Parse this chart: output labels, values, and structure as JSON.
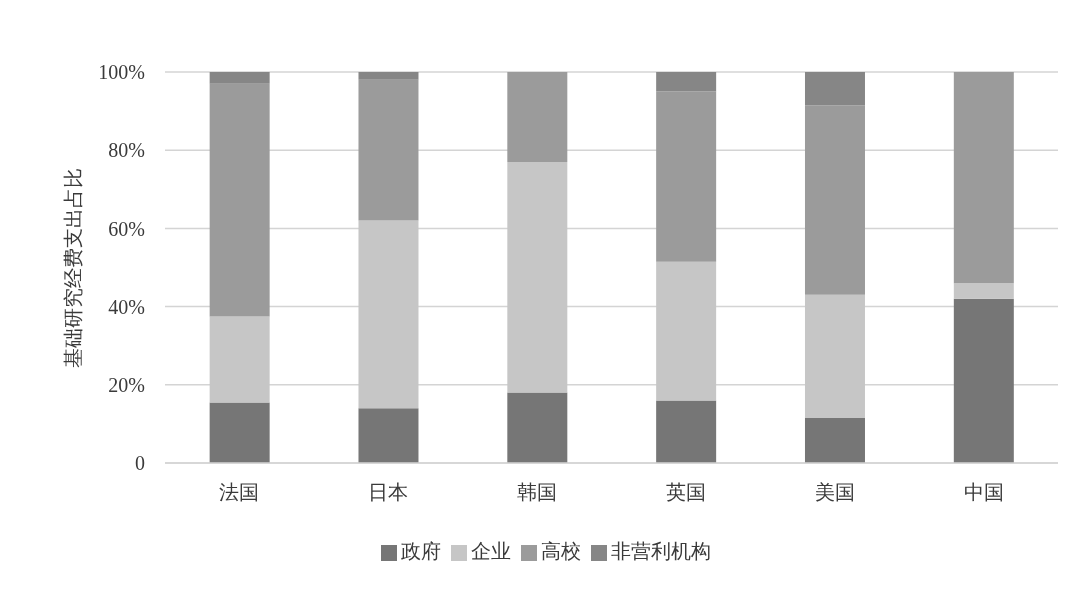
{
  "chart_data": {
    "type": "bar",
    "stacked": true,
    "ylabel": "基础研究经费支出占比",
    "categories": [
      "法国",
      "日本",
      "韩国",
      "英国",
      "美国",
      "中国"
    ],
    "series": [
      {
        "name": "政府",
        "color": "#767676",
        "values": [
          15.5,
          14,
          18,
          16,
          11.5,
          42
        ]
      },
      {
        "name": "企业",
        "color": "#c6c6c6",
        "values": [
          22,
          48,
          59,
          35.5,
          31.5,
          4
        ]
      },
      {
        "name": "高校",
        "color": "#9b9b9b",
        "values": [
          59.5,
          36,
          23,
          43.5,
          48.5,
          54
        ]
      },
      {
        "name": "非营利机构",
        "color": "#868686",
        "values": [
          3,
          2,
          0,
          5,
          8.5,
          0
        ]
      }
    ],
    "ylim": [
      0,
      100
    ],
    "yticks": [
      0,
      {
        "value": 20,
        "label": "20%"
      },
      {
        "value": 40,
        "label": "40%"
      },
      {
        "value": 60,
        "label": "60%"
      },
      {
        "value": 80,
        "label": "80%"
      },
      {
        "value": 100,
        "label": "100%"
      }
    ],
    "grid": "y",
    "legend": "bottom"
  }
}
